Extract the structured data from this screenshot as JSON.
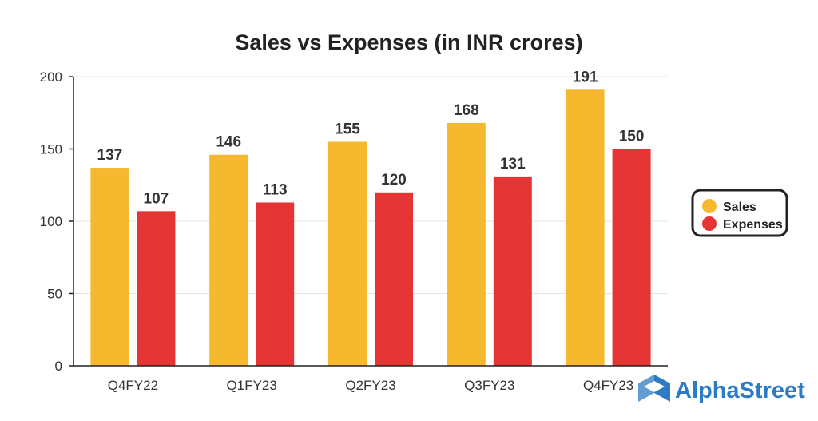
{
  "chart_data": {
    "type": "bar",
    "title": "Sales vs Expenses (in INR crores)",
    "categories": [
      "Q4FY22",
      "Q1FY23",
      "Q2FY23",
      "Q3FY23",
      "Q4FY23"
    ],
    "series": [
      {
        "name": "Sales",
        "values": [
          137,
          146,
          155,
          168,
          191
        ],
        "color": "#F5B82E"
      },
      {
        "name": "Expenses",
        "values": [
          107,
          113,
          120,
          131,
          150
        ],
        "color": "#E43434"
      }
    ],
    "ylim": [
      0,
      200
    ],
    "yticks": [
      0,
      50,
      100,
      150,
      200
    ],
    "xlabel": "",
    "ylabel": "",
    "grid": true,
    "legend": "right"
  },
  "brand": {
    "name": "AlphaStreet",
    "color": "#2C7BC4",
    "icon": "alphastreet-logo-icon"
  }
}
